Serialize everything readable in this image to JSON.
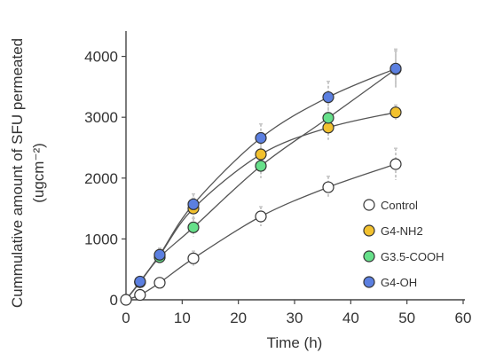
{
  "chart_data": {
    "type": "line",
    "title": "",
    "xlabel": "Time (h)",
    "ylabel_lines": [
      "Cummulative amount of SFU permeated",
      "(ugcm⁻²)"
    ],
    "xlim": [
      0,
      60
    ],
    "ylim": [
      0,
      4300
    ],
    "xticks": [
      0,
      10,
      20,
      30,
      40,
      50,
      60
    ],
    "yticks": [
      0,
      1000,
      2000,
      3000,
      4000
    ],
    "grid": false,
    "legend_position": "bottom-right",
    "shared_origin": {
      "x": 0,
      "y": 0
    },
    "series": [
      {
        "name": "Control",
        "color": "#ffffff",
        "x": [
          2.5,
          6,
          12,
          24,
          36,
          48
        ],
        "y": [
          80,
          280,
          680,
          1370,
          1850,
          2230
        ],
        "err": [
          60,
          70,
          120,
          160,
          180,
          260
        ]
      },
      {
        "name": "G4-NH2",
        "color": "#f2c12e",
        "x": [
          2.5,
          6,
          12,
          24,
          36,
          48
        ],
        "y": [
          290,
          730,
          1500,
          2390,
          2830,
          3080
        ],
        "err": [
          60,
          110,
          170,
          260,
          200,
          120
        ]
      },
      {
        "name": "G3.5-COOH",
        "color": "#66e08a",
        "x": [
          2.5,
          6,
          12,
          24,
          36,
          48
        ],
        "y": [
          290,
          700,
          1190,
          2200,
          2990,
          3790
        ],
        "err": [
          60,
          100,
          150,
          200,
          250,
          300
        ]
      },
      {
        "name": "G4-OH",
        "color": "#5b7fe0",
        "x": [
          2.5,
          6,
          12,
          24,
          36,
          48
        ],
        "y": [
          300,
          740,
          1570,
          2660,
          3330,
          3800
        ],
        "err": [
          60,
          110,
          170,
          230,
          260,
          320
        ]
      }
    ]
  }
}
